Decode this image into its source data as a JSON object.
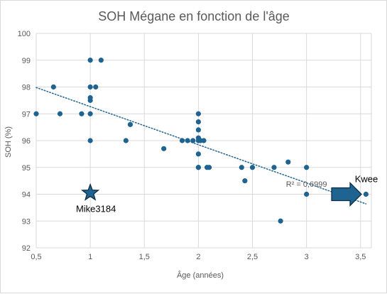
{
  "chart_data": {
    "type": "scatter",
    "title": "SOH Mégane en fonction de l'âge",
    "xlabel": "Âge (années)",
    "ylabel": "SOH (%)",
    "xlim": [
      0.5,
      3.6
    ],
    "ylim": [
      92,
      100
    ],
    "x_ticks": [
      0.5,
      1,
      1.5,
      2,
      2.5,
      3,
      3.5
    ],
    "x_tick_labels": [
      "0,5",
      "1",
      "1,5",
      "2",
      "2,5",
      "3",
      "3,5"
    ],
    "y_ticks": [
      92,
      93,
      94,
      95,
      96,
      97,
      98,
      99,
      100
    ],
    "y_tick_labels": [
      "92",
      "93",
      "94",
      "95",
      "96",
      "97",
      "98",
      "99",
      "100"
    ],
    "grid": "vertical and horizontal major gridlines",
    "series": [
      {
        "color": "#1f6391",
        "points": [
          [
            0.5,
            97
          ],
          [
            0.66,
            98
          ],
          [
            0.72,
            97
          ],
          [
            0.92,
            97
          ],
          [
            1.0,
            99
          ],
          [
            1.0,
            98
          ],
          [
            1.0,
            97.6
          ],
          [
            1.0,
            97.5
          ],
          [
            1.0,
            97
          ],
          [
            1.0,
            96
          ],
          [
            1.05,
            98
          ],
          [
            1.1,
            99
          ],
          [
            1.33,
            96
          ],
          [
            1.37,
            96.6
          ],
          [
            1.68,
            95.7
          ],
          [
            1.85,
            96
          ],
          [
            1.9,
            96
          ],
          [
            1.95,
            96
          ],
          [
            2.0,
            97
          ],
          [
            2.0,
            96.7
          ],
          [
            2.0,
            96.4
          ],
          [
            2.0,
            96.1
          ],
          [
            2.0,
            96
          ],
          [
            2.0,
            95.5
          ],
          [
            2.0,
            95
          ],
          [
            2.0,
            95
          ],
          [
            2.02,
            96
          ],
          [
            2.05,
            96
          ],
          [
            2.08,
            95
          ],
          [
            2.1,
            95
          ],
          [
            2.4,
            95
          ],
          [
            2.43,
            94.5
          ],
          [
            2.5,
            95
          ],
          [
            2.7,
            95
          ],
          [
            2.76,
            93
          ],
          [
            2.83,
            95.2
          ],
          [
            3.0,
            95
          ],
          [
            3.0,
            94
          ],
          [
            3.55,
            94
          ]
        ]
      }
    ],
    "trendline": {
      "type": "linear",
      "style": "dotted",
      "color": "#1f6391",
      "x_range": [
        0.5,
        3.55
      ],
      "start_y": 97.98,
      "end_y": 93.64,
      "label": "R² = 0,6999"
    },
    "annotations": [
      {
        "text": "Mike3184",
        "marker": "star",
        "x": 1.0,
        "y": 94.05,
        "color": "#1f6391"
      },
      {
        "text": "Kwee",
        "marker": "arrow-right",
        "x": 3.4,
        "y": 94,
        "color": "#1f6391"
      }
    ]
  }
}
